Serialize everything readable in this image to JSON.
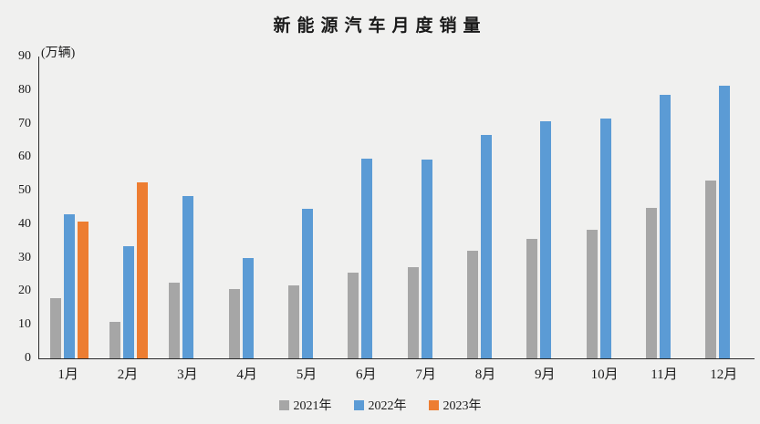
{
  "chart_data": {
    "type": "bar",
    "title": "新能源汽车月度销量",
    "ylabel": "(万辆)",
    "xlabel": "",
    "ylim": [
      0,
      90
    ],
    "ytick_step": 10,
    "grid": false,
    "legend_position": "bottom",
    "categories": [
      "1月",
      "2月",
      "3月",
      "4月",
      "5月",
      "6月",
      "7月",
      "8月",
      "9月",
      "10月",
      "11月",
      "12月"
    ],
    "series": [
      {
        "name": "2021年",
        "color": "#A6A6A6",
        "values": [
          17.9,
          11.0,
          22.6,
          20.6,
          21.7,
          25.6,
          27.1,
          32.1,
          35.7,
          38.3,
          45.0,
          53.1
        ]
      },
      {
        "name": "2022年",
        "color": "#5B9BD5",
        "values": [
          43.1,
          33.4,
          48.4,
          29.9,
          44.7,
          59.6,
          59.3,
          66.6,
          70.8,
          71.4,
          78.6,
          81.4
        ]
      },
      {
        "name": "2023年",
        "color": "#ED7D31",
        "values": [
          40.8,
          52.5,
          null,
          null,
          null,
          null,
          null,
          null,
          null,
          null,
          null,
          null
        ]
      }
    ],
    "colors": {
      "background": "#F0F0EF",
      "axis": "#2B2B2B",
      "text": "#1A1A1A"
    }
  }
}
